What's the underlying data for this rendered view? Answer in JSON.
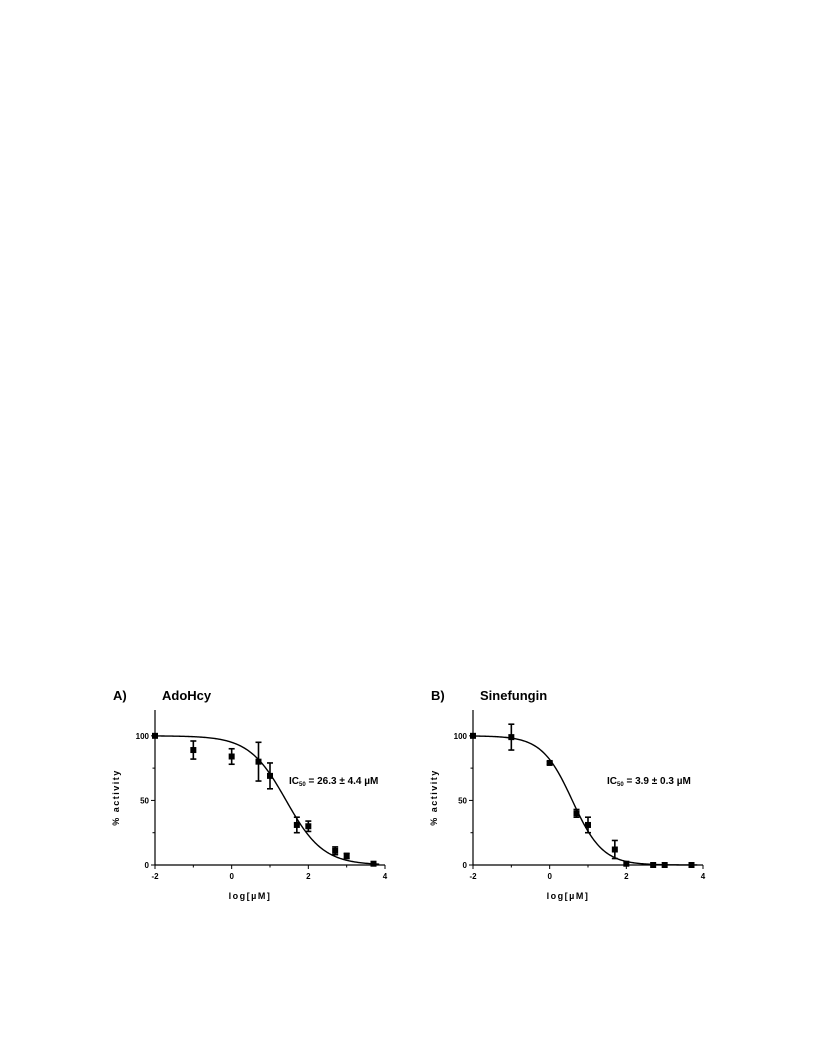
{
  "chart_data": [
    {
      "type": "scatter",
      "panel_letter": "A)",
      "title": "AdoHcy",
      "xlabel": "log[µM]",
      "ylabel": "% activity",
      "xlim": [
        -2,
        4
      ],
      "ylim": [
        0,
        120
      ],
      "xticks": [
        "-2",
        "0",
        "2",
        "4"
      ],
      "yticks": [
        "0",
        "50",
        "100"
      ],
      "grid": false,
      "annotation": {
        "prefix": "IC",
        "subscript": "50",
        "text": " = 26.3 ± 4.4 µM"
      },
      "fit": {
        "top": 100,
        "bottom": 0,
        "log_ic50": 1.42,
        "hill": 0.9
      },
      "points": [
        {
          "x": -2.0,
          "y": 100,
          "err": 0
        },
        {
          "x": -1.0,
          "y": 89,
          "err": 7
        },
        {
          "x": 0.0,
          "y": 84,
          "err": 6
        },
        {
          "x": 0.7,
          "y": 80,
          "err": 15
        },
        {
          "x": 1.0,
          "y": 69,
          "err": 10
        },
        {
          "x": 1.7,
          "y": 31,
          "err": 6
        },
        {
          "x": 2.0,
          "y": 30,
          "err": 4
        },
        {
          "x": 2.7,
          "y": 11,
          "err": 3
        },
        {
          "x": 3.0,
          "y": 7,
          "err": 2
        },
        {
          "x": 3.7,
          "y": 1,
          "err": 0
        }
      ]
    },
    {
      "type": "scatter",
      "panel_letter": "B)",
      "title": "Sinefungin",
      "xlabel": "log[µM]",
      "ylabel": "% activity",
      "xlim": [
        -2,
        4
      ],
      "ylim": [
        0,
        120
      ],
      "xticks": [
        "-2",
        "0",
        "2",
        "4"
      ],
      "yticks": [
        "0",
        "50",
        "100"
      ],
      "grid": false,
      "annotation": {
        "prefix": "IC",
        "subscript": "50",
        "text": " = 3.9 ± 0.3 µM"
      },
      "fit": {
        "top": 100,
        "bottom": 0,
        "log_ic50": 0.59,
        "hill": 1.1
      },
      "points": [
        {
          "x": -2.0,
          "y": 100,
          "err": 0
        },
        {
          "x": -1.0,
          "y": 99,
          "err": 10
        },
        {
          "x": 0.0,
          "y": 79,
          "err": 1
        },
        {
          "x": 0.7,
          "y": 40,
          "err": 3
        },
        {
          "x": 1.0,
          "y": 31,
          "err": 6
        },
        {
          "x": 1.7,
          "y": 12,
          "err": 7
        },
        {
          "x": 2.0,
          "y": 1,
          "err": 0
        },
        {
          "x": 2.7,
          "y": 0,
          "err": 0
        },
        {
          "x": 3.0,
          "y": 0,
          "err": 0
        },
        {
          "x": 3.7,
          "y": 0,
          "err": 0
        }
      ]
    }
  ]
}
